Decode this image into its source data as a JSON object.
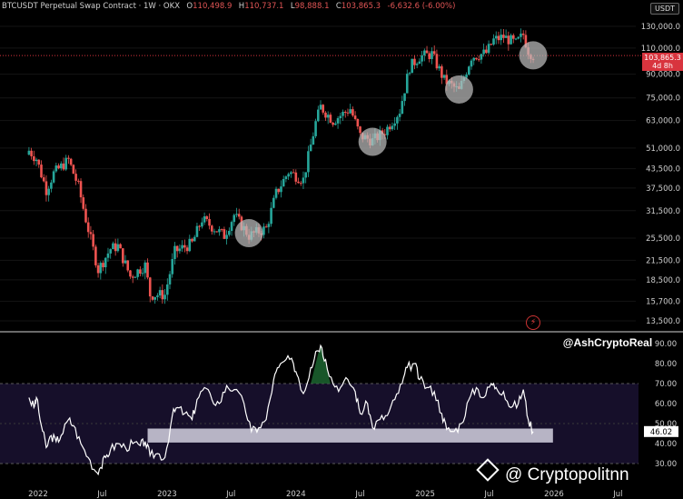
{
  "header": {
    "symbol": "BTCUSDT Perpetual Swap Contract · 1W · OKX",
    "o_label": "O",
    "o_value": "110,498.9",
    "h_label": "H",
    "h_value": "110,737.1",
    "l_label": "L",
    "l_value": "98,888.1",
    "c_label": "C",
    "c_value": "103,865.3",
    "change": "-6,632.6 (-6.00%)"
  },
  "currency_button": "USDT",
  "price_badge": {
    "value": "103,865.3",
    "sub": "4d 8h"
  },
  "watermark_handle": "@AshCryptoReal",
  "brand": "@ Cryptopolitnn",
  "colors": {
    "up": "#26a69a",
    "down": "#ef5350",
    "rsi_line": "#ffffff",
    "support_band": "#c9c6d6",
    "circle": "#bdbdbd",
    "rsi_band": "#160f2a"
  },
  "chart_data": [
    {
      "type": "candlestick",
      "title": "BTCUSDT Perpetual Swap Contract · 1W · OKX",
      "y_scale": "log",
      "y_ticks": [
        130000,
        110000,
        90000,
        75000,
        63000,
        51000,
        43500,
        37500,
        31500,
        25500,
        21500,
        18500,
        15700,
        13500
      ],
      "y_tick_labels": [
        "130,000.0",
        "110,000.0",
        "90,000.0",
        "75,000.0",
        "63,000.0",
        "51,000.0",
        "43,500.0",
        "37,500.0",
        "31,500.0",
        "25,500.0",
        "21,500.0",
        "18,500.0",
        "15,700.0",
        "13,500.0"
      ],
      "x_tick_labels": [
        "2022",
        "Jul",
        "2023",
        "Jul",
        "2024",
        "Jul",
        "2025",
        "Jul",
        "2026",
        "Jul"
      ],
      "x_tick_dates": [
        "2022-01-01",
        "2022-07-01",
        "2023-01-01",
        "2023-07-01",
        "2024-01-01",
        "2024-07-01",
        "2025-01-01",
        "2025-07-01",
        "2026-01-01",
        "2026-07-01"
      ],
      "current_price": 103865.3,
      "path": [
        [
          "2021-12-06",
          50000
        ],
        [
          "2021-12-27",
          47000
        ],
        [
          "2022-01-24",
          37000
        ],
        [
          "2022-02-14",
          42000
        ],
        [
          "2022-03-28",
          46500
        ],
        [
          "2022-04-25",
          38000
        ],
        [
          "2022-05-16",
          29500
        ],
        [
          "2022-06-20",
          20000
        ],
        [
          "2022-07-25",
          23500
        ],
        [
          "2022-08-15",
          24000
        ],
        [
          "2022-09-19",
          19000
        ],
        [
          "2022-10-31",
          20700
        ],
        [
          "2022-11-14",
          16500
        ],
        [
          "2022-12-26",
          16500
        ],
        [
          "2023-01-23",
          23000
        ],
        [
          "2023-03-13",
          24500
        ],
        [
          "2023-04-10",
          29500
        ],
        [
          "2023-06-12",
          26000
        ],
        [
          "2023-07-10",
          30500
        ],
        [
          "2023-08-21",
          26000
        ],
        [
          "2023-10-09",
          27500
        ],
        [
          "2023-11-06",
          36000
        ],
        [
          "2023-12-11",
          42500
        ],
        [
          "2024-01-22",
          40000
        ],
        [
          "2024-02-26",
          62000
        ],
        [
          "2024-03-11",
          70000
        ],
        [
          "2024-04-15",
          63000
        ],
        [
          "2024-06-03",
          69000
        ],
        [
          "2024-07-01",
          56000
        ],
        [
          "2024-08-05",
          54000
        ],
        [
          "2024-09-09",
          58000
        ],
        [
          "2024-10-21",
          68000
        ],
        [
          "2024-11-18",
          95000
        ],
        [
          "2024-12-16",
          103000
        ],
        [
          "2025-01-20",
          105000
        ],
        [
          "2025-02-24",
          86000
        ],
        [
          "2025-04-07",
          79000
        ],
        [
          "2025-05-12",
          103000
        ],
        [
          "2025-06-23",
          106000
        ],
        [
          "2025-07-14",
          117000
        ],
        [
          "2025-08-11",
          120000
        ],
        [
          "2025-09-15",
          114000
        ],
        [
          "2025-10-06",
          122000
        ],
        [
          "2025-10-20",
          108000
        ],
        [
          "2025-11-03",
          103865
        ]
      ],
      "highlight_circles": [
        [
          "2023-08-21",
          26500
        ],
        [
          "2024-08-05",
          53500
        ],
        [
          "2025-04-07",
          80000
        ],
        [
          "2025-11-03",
          104000
        ]
      ]
    },
    {
      "type": "line",
      "y_ticks": [
        90,
        80,
        70,
        60,
        50,
        40,
        30
      ],
      "y_tick_labels": [
        "90.00",
        "80.00",
        "70.00",
        "60.00",
        "50.00",
        "40.00",
        "30.00"
      ],
      "bands": [
        70,
        30
      ],
      "current_value_label": "46.02",
      "support_zone": {
        "from_date": "2022-11-07",
        "to_date": "2025-12-29",
        "y_min": 40.5,
        "y_max": 47.5
      },
      "series": [
        {
          "points": [
            [
              "2021-12-06",
              63
            ],
            [
              "2021-12-20",
              58
            ],
            [
              "2021-12-27",
              63
            ],
            [
              "2022-01-10",
              49
            ],
            [
              "2022-01-24",
              38
            ],
            [
              "2022-02-07",
              44
            ],
            [
              "2022-02-21",
              41
            ],
            [
              "2022-03-07",
              44
            ],
            [
              "2022-03-28",
              52
            ],
            [
              "2022-04-11",
              49
            ],
            [
              "2022-05-02",
              40
            ],
            [
              "2022-05-23",
              33
            ],
            [
              "2022-06-13",
              26
            ],
            [
              "2022-06-27",
              28
            ],
            [
              "2022-07-11",
              33
            ],
            [
              "2022-07-25",
              37
            ],
            [
              "2022-08-15",
              40
            ],
            [
              "2022-09-05",
              38
            ],
            [
              "2022-09-26",
              40
            ],
            [
              "2022-10-17",
              39
            ],
            [
              "2022-10-31",
              41
            ],
            [
              "2022-11-14",
              34
            ],
            [
              "2022-12-05",
              35
            ],
            [
              "2022-12-26",
              33
            ],
            [
              "2023-01-16",
              54
            ],
            [
              "2023-01-30",
              58
            ],
            [
              "2023-02-20",
              55
            ],
            [
              "2023-03-13",
              52
            ],
            [
              "2023-03-27",
              62
            ],
            [
              "2023-04-17",
              68
            ],
            [
              "2023-05-08",
              62
            ],
            [
              "2023-05-29",
              60
            ],
            [
              "2023-06-19",
              69
            ],
            [
              "2023-07-10",
              67
            ],
            [
              "2023-08-07",
              60
            ],
            [
              "2023-08-28",
              46
            ],
            [
              "2023-09-18",
              48
            ],
            [
              "2023-10-09",
              52
            ],
            [
              "2023-10-30",
              72
            ],
            [
              "2023-11-13",
              78
            ],
            [
              "2023-12-04",
              82
            ],
            [
              "2023-12-25",
              80
            ],
            [
              "2024-01-08",
              73
            ],
            [
              "2024-01-22",
              65
            ],
            [
              "2024-02-12",
              78
            ],
            [
              "2024-02-26",
              86
            ],
            [
              "2024-03-11",
              89
            ],
            [
              "2024-03-25",
              82
            ],
            [
              "2024-04-15",
              70
            ],
            [
              "2024-05-06",
              68
            ],
            [
              "2024-05-27",
              72
            ],
            [
              "2024-06-17",
              66
            ],
            [
              "2024-07-01",
              55
            ],
            [
              "2024-07-22",
              60
            ],
            [
              "2024-08-05",
              48
            ],
            [
              "2024-08-26",
              52
            ],
            [
              "2024-09-16",
              54
            ],
            [
              "2024-10-07",
              62
            ],
            [
              "2024-10-28",
              70
            ],
            [
              "2024-11-11",
              78
            ],
            [
              "2024-12-02",
              80
            ],
            [
              "2024-12-16",
              72
            ],
            [
              "2025-01-06",
              68
            ],
            [
              "2025-01-27",
              66
            ],
            [
              "2025-02-17",
              55
            ],
            [
              "2025-03-03",
              47
            ],
            [
              "2025-03-24",
              46
            ],
            [
              "2025-04-14",
              50
            ],
            [
              "2025-05-05",
              62
            ],
            [
              "2025-05-26",
              68
            ],
            [
              "2025-06-16",
              63
            ],
            [
              "2025-07-07",
              70
            ],
            [
              "2025-07-21",
              68
            ],
            [
              "2025-08-11",
              66
            ],
            [
              "2025-09-01",
              58
            ],
            [
              "2025-09-22",
              60
            ],
            [
              "2025-10-06",
              67
            ],
            [
              "2025-10-20",
              52
            ],
            [
              "2025-11-03",
              46
            ]
          ]
        }
      ]
    }
  ]
}
